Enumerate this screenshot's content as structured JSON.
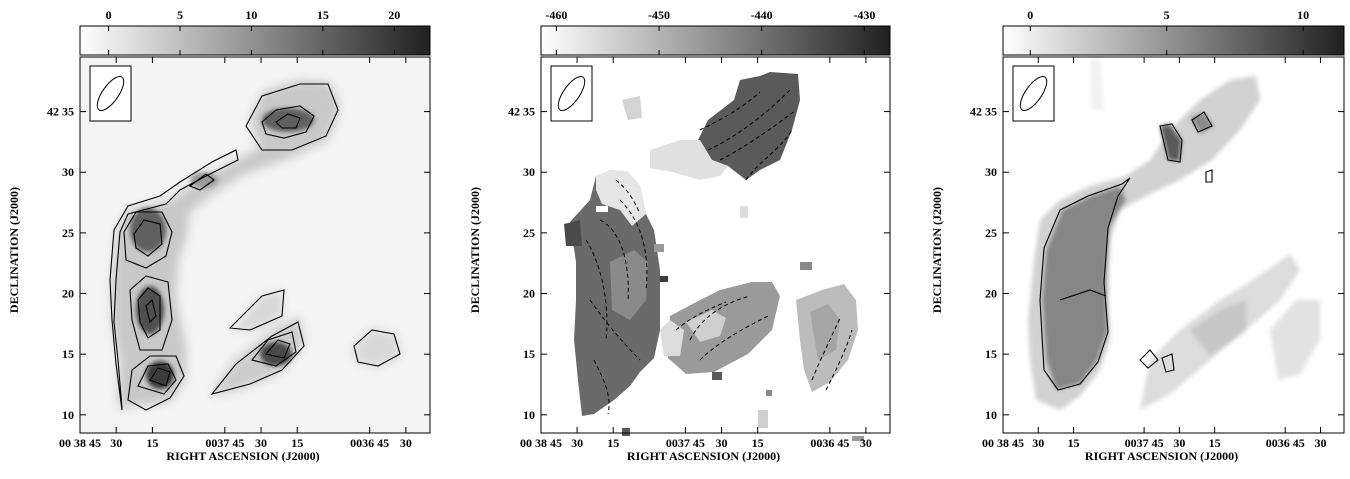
{
  "chart_data": [
    {
      "type": "heatmap",
      "panel": "left",
      "colorbar": {
        "ticks": [
          0,
          5,
          10,
          15,
          20
        ],
        "range": [
          -2,
          22.5
        ]
      },
      "contours": {
        "style": "solid"
      },
      "xlabel": "RIGHT ASCENSION (J2000)",
      "ylabel": "DECLINATION (J2000)",
      "x_ticks": [
        {
          "label": "00 38 45",
          "ra_sec": 2325
        },
        {
          "label": "30",
          "ra_sec": 2310
        },
        {
          "label": "15",
          "ra_sec": 2295
        },
        {
          "label": "0037 45",
          "ra_sec": 2265
        },
        {
          "label": "30",
          "ra_sec": 2250
        },
        {
          "label": "15",
          "ra_sec": 2235
        },
        {
          "label": "0036 45",
          "ra_sec": 2205
        },
        {
          "label": "30",
          "ra_sec": 2190
        }
      ],
      "y_ticks": [
        {
          "label": "10",
          "dec_arcmin": 10
        },
        {
          "label": "15",
          "dec_arcmin": 15
        },
        {
          "label": "20",
          "dec_arcmin": 20
        },
        {
          "label": "25",
          "dec_arcmin": 25
        },
        {
          "label": "30",
          "dec_arcmin": 30
        },
        {
          "label": "42 35",
          "dec_arcmin": 35
        }
      ],
      "xlim_ra_sec": [
        2325,
        2180
      ],
      "ylim_dec_arcmin": [
        8.5,
        39.5
      ]
    },
    {
      "type": "heatmap",
      "panel": "middle",
      "colorbar": {
        "ticks": [
          -460,
          -450,
          -440,
          -430
        ],
        "range": [
          -461.5,
          -427.5
        ]
      },
      "contours": {
        "style": "dashed"
      },
      "xlabel": "RIGHT ASCENSION (J2000)",
      "ylabel": "DECLINATION (J2000)",
      "x_ticks": [
        {
          "label": "00 38 45",
          "ra_sec": 2325
        },
        {
          "label": "30",
          "ra_sec": 2310
        },
        {
          "label": "15",
          "ra_sec": 2295
        },
        {
          "label": "0037 45",
          "ra_sec": 2265
        },
        {
          "label": "30",
          "ra_sec": 2250
        },
        {
          "label": "15",
          "ra_sec": 2235
        },
        {
          "label": "0036 45",
          "ra_sec": 2205
        },
        {
          "label": "30",
          "ra_sec": 2190
        }
      ],
      "y_ticks": [
        {
          "label": "10",
          "dec_arcmin": 10
        },
        {
          "label": "15",
          "dec_arcmin": 15
        },
        {
          "label": "20",
          "dec_arcmin": 20
        },
        {
          "label": "25",
          "dec_arcmin": 25
        },
        {
          "label": "30",
          "dec_arcmin": 30
        },
        {
          "label": "42 35",
          "dec_arcmin": 35
        }
      ],
      "xlim_ra_sec": [
        2325,
        2180
      ],
      "ylim_dec_arcmin": [
        8.5,
        39.5
      ]
    },
    {
      "type": "heatmap",
      "panel": "right",
      "colorbar": {
        "ticks": [
          0,
          5,
          10
        ],
        "range": [
          -1,
          11.5
        ]
      },
      "contours": {
        "style": "solid"
      },
      "xlabel": "RIGHT ASCENSION (J2000)",
      "ylabel": "DECLINATION (J2000)",
      "x_ticks": [
        {
          "label": "00 38 45",
          "ra_sec": 2325
        },
        {
          "label": "30",
          "ra_sec": 2310
        },
        {
          "label": "15",
          "ra_sec": 2295
        },
        {
          "label": "0037 45",
          "ra_sec": 2265
        },
        {
          "label": "30",
          "ra_sec": 2250
        },
        {
          "label": "15",
          "ra_sec": 2235
        },
        {
          "label": "0036 45",
          "ra_sec": 2205
        },
        {
          "label": "30",
          "ra_sec": 2190
        }
      ],
      "y_ticks": [
        {
          "label": "10",
          "dec_arcmin": 10
        },
        {
          "label": "15",
          "dec_arcmin": 15
        },
        {
          "label": "20",
          "dec_arcmin": 20
        },
        {
          "label": "25",
          "dec_arcmin": 25
        },
        {
          "label": "30",
          "dec_arcmin": 30
        },
        {
          "label": "42 35",
          "dec_arcmin": 35
        }
      ],
      "xlim_ra_sec": [
        2325,
        2180
      ],
      "ylim_dec_arcmin": [
        8.5,
        39.5
      ]
    }
  ]
}
